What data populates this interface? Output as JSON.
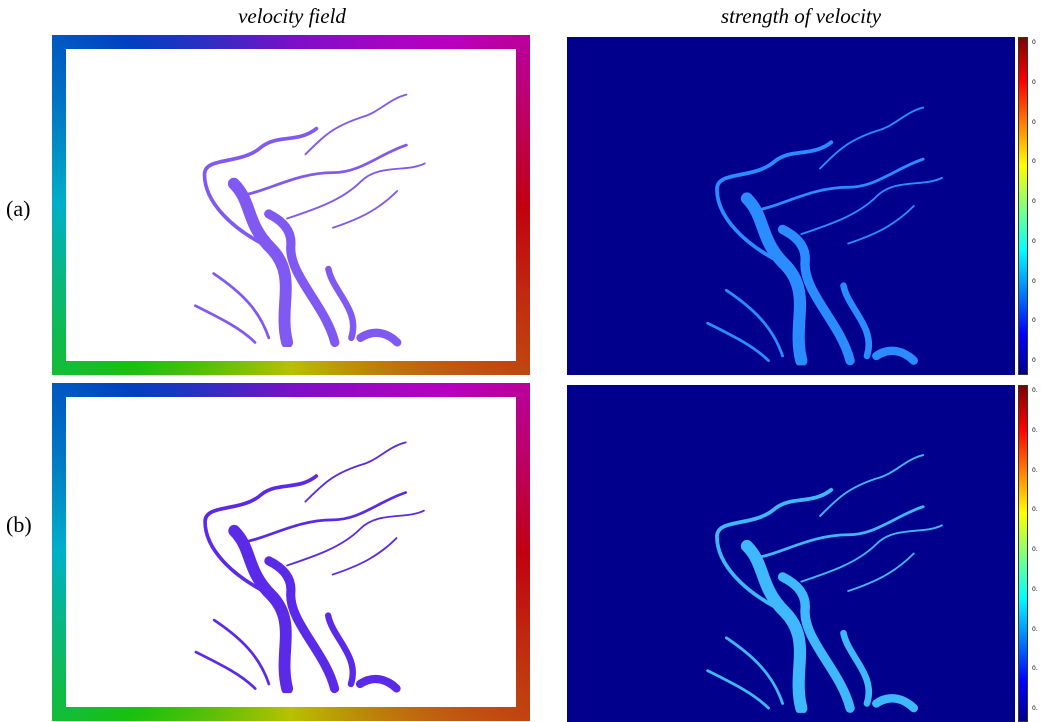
{
  "column_titles": [
    "velocity field",
    "strength of velocity"
  ],
  "rows": [
    {
      "label": "(a)",
      "colorbar_ticks": [
        "0",
        "0",
        "0",
        "0",
        "0",
        "0",
        "0",
        "0",
        "0"
      ]
    },
    {
      "label": "(b)",
      "colorbar_ticks": [
        "0.",
        "0.",
        "0.",
        "0.",
        "0.",
        "0.",
        "0.",
        "0.",
        "0."
      ]
    }
  ]
}
